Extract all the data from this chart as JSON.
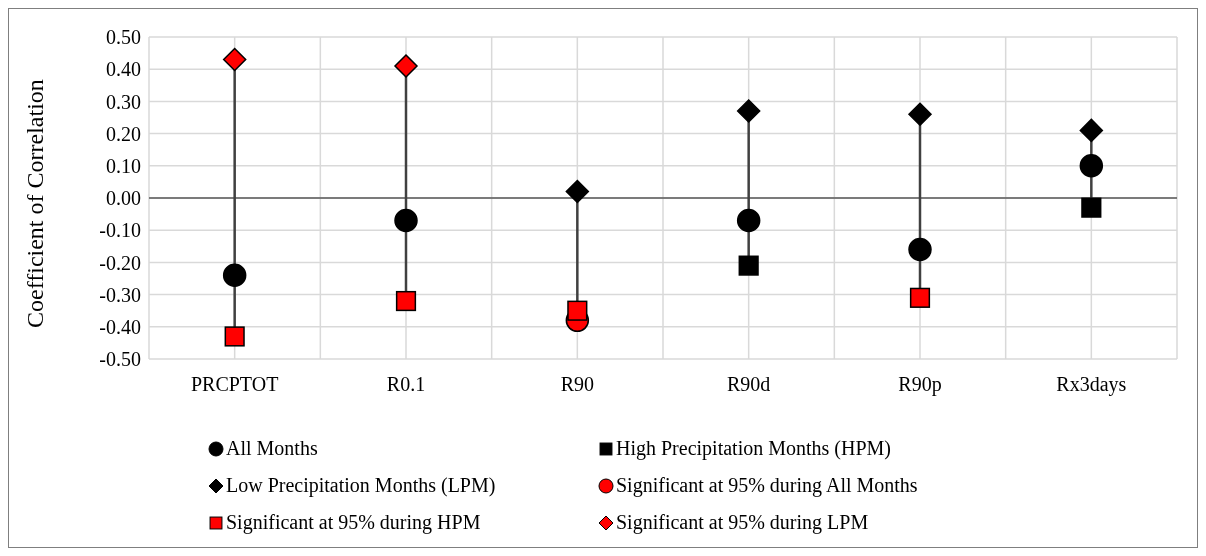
{
  "chart_data": {
    "type": "scatter",
    "ylabel": "Coefficient of Correlation",
    "categories": [
      "PRCPTOT",
      "R0.1",
      "R90",
      "R90d",
      "R90p",
      "Rx3days"
    ],
    "series": [
      {
        "name": "All Months",
        "color": "#000000",
        "marker": "circle",
        "values": [
          -0.24,
          -0.07,
          null,
          -0.07,
          -0.16,
          0.1
        ]
      },
      {
        "name": "High Precipitation Months (HPM)",
        "color": "#000000",
        "marker": "square",
        "values": [
          null,
          null,
          null,
          -0.21,
          null,
          -0.03
        ]
      },
      {
        "name": "Low Precipitation Months (LPM)",
        "color": "#000000",
        "marker": "diamond",
        "values": [
          null,
          null,
          0.02,
          0.27,
          0.26,
          0.21
        ]
      },
      {
        "name": "Significant at 95% during All Months",
        "color": "#ff0000",
        "marker": "circle",
        "values": [
          null,
          null,
          -0.38,
          null,
          null,
          null
        ]
      },
      {
        "name": "Significant at 95% during HPM",
        "color": "#ff0000",
        "marker": "square",
        "values": [
          -0.43,
          -0.32,
          -0.35,
          null,
          -0.31,
          null
        ]
      },
      {
        "name": "Significant at 95% during LPM",
        "color": "#ff0000",
        "marker": "diamond",
        "values": [
          0.43,
          0.41,
          null,
          null,
          null,
          null
        ]
      }
    ],
    "ylim": [
      -0.5,
      0.5
    ],
    "yticks": [
      {
        "value": -0.5,
        "label": "-0.50"
      },
      {
        "value": -0.4,
        "label": "-0.40"
      },
      {
        "value": -0.3,
        "label": "-0.30"
      },
      {
        "value": -0.2,
        "label": "-0.20"
      },
      {
        "value": -0.1,
        "label": "-0.10"
      },
      {
        "value": 0,
        "label": "0.00"
      },
      {
        "value": 0.1,
        "label": "0.10"
      },
      {
        "value": 0.2,
        "label": "0.20"
      },
      {
        "value": 0.3,
        "label": "0.30"
      },
      {
        "value": 0.4,
        "label": "0.40"
      },
      {
        "value": 0.5,
        "label": "0.50"
      }
    ],
    "ref_lines": [
      {
        "axis": "y",
        "value": 0,
        "color": "#595959"
      }
    ],
    "grid": true,
    "legend": "bottom"
  }
}
